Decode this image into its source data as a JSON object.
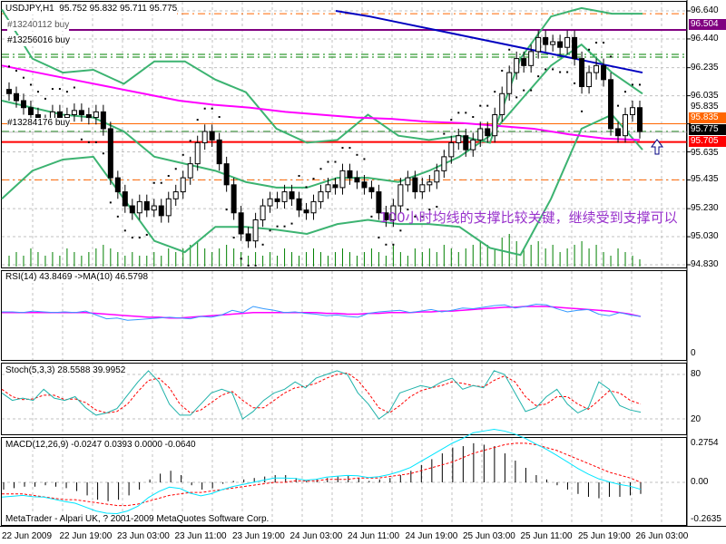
{
  "header": {
    "symbol": "USDJPY,H1",
    "ohlc": "95.752 95.832 95.711 95.775"
  },
  "orders": [
    "#13240112 buy",
    "#13256016 buy",
    "#13284176 buy"
  ],
  "annotation": "100小时均线的支撑比较关键，继续受到支撑可以",
  "price_axis": [
    "96.640",
    "96.440",
    "96.235",
    "96.035",
    "95.835",
    "95.635",
    "95.435",
    "95.230",
    "95.030",
    "94.830"
  ],
  "price_tags": {
    "resistance": "96.504",
    "level": "95.835",
    "bid": "95.775",
    "support": "95.705"
  },
  "colors": {
    "resistance": "#800080",
    "level": "#ff6600",
    "bid": "#000000",
    "support": "#ff0000",
    "ma": "#ff00ff",
    "ma2": "#0000c0",
    "bands": "#3cb371",
    "volume": "#008000",
    "rsi": "#3399ff",
    "stoch": "#20b2aa",
    "signal": "#ff0000",
    "macd": "#00e5ff"
  },
  "rsi": {
    "label": "RSI(14) 43.8469  ->MA(10) 46.5798",
    "axis": [
      "0"
    ],
    "values": [
      53,
      53,
      52,
      54,
      53,
      52,
      53,
      52,
      54,
      49,
      44,
      45,
      42,
      43,
      44,
      45,
      46,
      45,
      44,
      47,
      46,
      49,
      55,
      52,
      60,
      57,
      55,
      52,
      53,
      51,
      50,
      48,
      49,
      47,
      46,
      51,
      53,
      54,
      55,
      52,
      54,
      56,
      53,
      55,
      58,
      57,
      59,
      61,
      62,
      58,
      60,
      63,
      62,
      57,
      53,
      55,
      56,
      50,
      48,
      52,
      49,
      47
    ],
    "ma": [
      52,
      52,
      52,
      52,
      52,
      52,
      52,
      52,
      52,
      51,
      50,
      49,
      48,
      47,
      46,
      46,
      45,
      45,
      46,
      47,
      48,
      49,
      50,
      51,
      52,
      52,
      52,
      52,
      52,
      52,
      52,
      51,
      51,
      50,
      50,
      51,
      51,
      52,
      52,
      52,
      53,
      53,
      54,
      54,
      55,
      56,
      57,
      58,
      59,
      59,
      60,
      60,
      60,
      59,
      58,
      57,
      56,
      55,
      54,
      52,
      50,
      47
    ]
  },
  "stoch": {
    "label": "Stoch(5,3,3) 28.5588 39.9952",
    "axis": [
      "80",
      "20"
    ],
    "k": [
      55,
      45,
      48,
      45,
      60,
      48,
      45,
      50,
      35,
      25,
      28,
      34,
      52,
      70,
      85,
      70,
      40,
      25,
      25,
      40,
      55,
      60,
      55,
      20,
      30,
      45,
      55,
      60,
      70,
      62,
      75,
      80,
      85,
      80,
      55,
      40,
      20,
      30,
      55,
      60,
      65,
      62,
      70,
      75,
      60,
      65,
      62,
      85,
      80,
      55,
      30,
      35,
      50,
      60,
      40,
      28,
      35,
      70,
      60,
      38,
      32,
      29
    ],
    "d": [
      60,
      50,
      46,
      47,
      52,
      52,
      46,
      47,
      42,
      32,
      28,
      30,
      40,
      57,
      72,
      75,
      62,
      40,
      28,
      32,
      42,
      52,
      57,
      45,
      35,
      35,
      45,
      55,
      62,
      64,
      68,
      75,
      80,
      82,
      72,
      55,
      35,
      28,
      38,
      50,
      58,
      62,
      65,
      70,
      68,
      65,
      63,
      72,
      78,
      70,
      50,
      38,
      40,
      50,
      50,
      40,
      33,
      45,
      58,
      55,
      45,
      40
    ]
  },
  "macd": {
    "label": "MACD(12,26,9) -0.0247 0.0393 0.0000 -0.0640",
    "axis": [
      "0.2754",
      "0.00",
      "-0.2635"
    ],
    "hist": [
      -0.05,
      -0.04,
      -0.03,
      -0.03,
      -0.02,
      -0.03,
      -0.04,
      -0.06,
      -0.09,
      -0.12,
      -0.13,
      -0.12,
      -0.09,
      -0.05,
      0.02,
      0.06,
      0.08,
      0.05,
      -0.02,
      -0.05,
      -0.04,
      -0.01,
      0.01,
      0.02,
      0.03,
      0.04,
      0.05,
      0.05,
      0.03,
      0.01,
      0.02,
      0.03,
      0.04,
      0.05,
      0.03,
      0.01,
      0.02,
      0.03,
      0.05,
      0.08,
      0.12,
      0.16,
      0.2,
      0.24,
      0.25,
      0.27,
      0.26,
      0.25,
      0.2,
      0.15,
      0.1,
      0.05,
      0.02,
      -0.02,
      -0.05,
      -0.08,
      -0.1,
      -0.11,
      -0.1,
      -0.1,
      -0.09,
      -0.08
    ],
    "signal": [
      -0.08,
      -0.08,
      -0.08,
      -0.09,
      -0.1,
      -0.11,
      -0.12,
      -0.12,
      -0.13,
      -0.14,
      -0.15,
      -0.16,
      -0.16,
      -0.15,
      -0.13,
      -0.11,
      -0.09,
      -0.08,
      -0.07,
      -0.07,
      -0.06,
      -0.05,
      -0.04,
      -0.03,
      -0.02,
      -0.01,
      0,
      0,
      0.01,
      0.01,
      0.01,
      0.02,
      0.02,
      0.02,
      0.03,
      0.03,
      0.03,
      0.04,
      0.05,
      0.06,
      0.08,
      0.1,
      0.12,
      0.14,
      0.17,
      0.2,
      0.22,
      0.24,
      0.26,
      0.27,
      0.27,
      0.26,
      0.24,
      0.22,
      0.19,
      0.16,
      0.13,
      0.1,
      0.07,
      0.05,
      0.03,
      0
    ]
  },
  "candles": [
    96.05,
    96.0,
    95.95,
    95.9,
    95.85,
    95.85,
    95.92,
    95.88,
    95.9,
    95.93,
    95.9,
    95.88,
    95.92,
    95.8,
    95.45,
    95.35,
    95.25,
    95.2,
    95.28,
    95.22,
    95.25,
    95.18,
    95.3,
    95.35,
    95.45,
    95.55,
    95.7,
    95.78,
    95.72,
    95.55,
    95.4,
    95.2,
    95.05,
    95.0,
    95.15,
    95.25,
    95.3,
    95.28,
    95.35,
    95.3,
    95.22,
    95.2,
    95.28,
    95.35,
    95.4,
    95.38,
    95.5,
    95.45,
    95.42,
    95.38,
    95.35,
    95.2,
    95.15,
    95.25,
    95.4,
    95.45,
    95.35,
    95.4,
    95.42,
    95.5,
    95.6,
    95.7,
    95.75,
    95.65,
    95.72,
    95.8,
    95.75,
    95.9,
    96.05,
    96.2,
    96.3,
    96.25,
    96.35,
    96.45,
    96.4,
    96.42,
    96.38,
    96.45,
    96.3,
    96.1,
    96.2,
    96.25,
    96.15,
    95.8,
    95.75,
    95.9,
    95.95,
    95.78
  ],
  "ma100": [
    96.25,
    96.2,
    96.15,
    96.1,
    96.05,
    96.0,
    95.97,
    95.95,
    95.92,
    95.9,
    95.88,
    95.87,
    95.85,
    95.84,
    95.82,
    95.8,
    95.76,
    95.73,
    95.72
  ],
  "ma200": [
    96.64,
    96.6,
    96.55,
    96.5,
    96.45,
    96.4,
    96.35,
    96.3,
    96.25,
    96.2
  ],
  "band_upper": [
    96.65,
    96.3,
    96.2,
    96.22,
    96.12,
    96.28,
    96.28,
    96.15,
    96.06,
    95.8,
    95.7,
    95.72,
    95.9,
    95.75,
    95.72,
    95.75,
    95.7,
    96.3,
    96.6,
    96.66,
    96.62,
    96.62
  ],
  "band_mid": [
    96.0,
    95.95,
    95.9,
    95.88,
    95.78,
    95.6,
    95.55,
    95.5,
    95.42,
    95.38,
    95.38,
    95.45,
    95.45,
    95.42,
    95.5,
    95.6,
    95.75,
    96.0,
    96.25,
    96.4,
    96.2,
    96.05
  ],
  "band_lower": [
    95.3,
    95.5,
    95.58,
    95.6,
    95.3,
    95.0,
    94.92,
    95.1,
    95.1,
    95.08,
    95.05,
    95.12,
    95.15,
    95.12,
    95.12,
    95.1,
    94.95,
    94.9,
    95.3,
    95.8,
    95.9,
    95.65
  ],
  "volumes": [
    3,
    4,
    3,
    5,
    4,
    3,
    4,
    3,
    5,
    4,
    3,
    4,
    5,
    6,
    5,
    4,
    3,
    4,
    3,
    3,
    4,
    3,
    5,
    4,
    5,
    6,
    7,
    5,
    4,
    5,
    6,
    5,
    4,
    3,
    4,
    3,
    4,
    3,
    5,
    4,
    3,
    4,
    5,
    4,
    3,
    4,
    5,
    4,
    3,
    4,
    5,
    4,
    3,
    6,
    4,
    3,
    5,
    4,
    5,
    4,
    6,
    5,
    4,
    5,
    6,
    7,
    6,
    5,
    8,
    9,
    7,
    5,
    6,
    7,
    5,
    6,
    4,
    5,
    6,
    7,
    5,
    6,
    4,
    3,
    5,
    4,
    3,
    2
  ],
  "time_axis": [
    "22 Jun 2009",
    "22 Jun 19:00",
    "23 Jun 03:00",
    "23 Jun 11:00",
    "23 Jun 19:00",
    "24 Jun 03:00",
    "24 Jun 11:00",
    "24 Jun 19:00",
    "25 Jun 03:00",
    "25 Jun 11:00",
    "25 Jun 19:00",
    "26 Jun 03:00"
  ],
  "footer": "MetaTrader - Alpari UK, ? 2001-2009 MetaQuotes Software Corp."
}
